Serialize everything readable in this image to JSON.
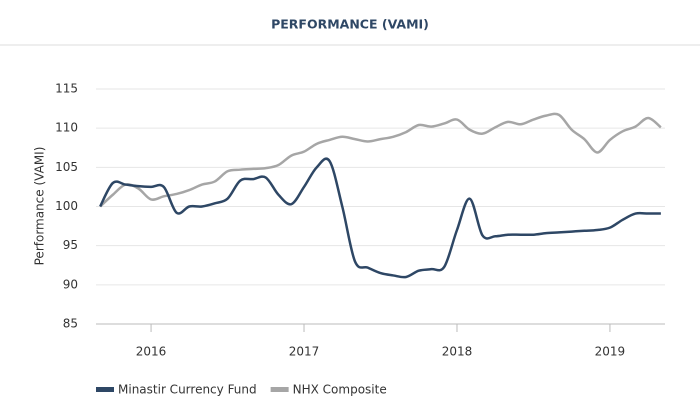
{
  "chart_data": {
    "type": "line",
    "title": "PERFORMANCE (VAMI)",
    "y_label": "Performance (VAMI)",
    "x": [
      2015.667,
      2015.75,
      2015.833,
      2015.917,
      2016.0,
      2016.083,
      2016.167,
      2016.25,
      2016.333,
      2016.417,
      2016.5,
      2016.583,
      2016.667,
      2016.75,
      2016.833,
      2016.917,
      2017.0,
      2017.083,
      2017.167,
      2017.25,
      2017.333,
      2017.417,
      2017.5,
      2017.583,
      2017.667,
      2017.75,
      2017.833,
      2017.917,
      2018.0,
      2018.083,
      2018.167,
      2018.25,
      2018.333,
      2018.417,
      2018.5,
      2018.583,
      2018.667,
      2018.75,
      2018.833,
      2018.917,
      2019.0,
      2019.083,
      2019.167,
      2019.25,
      2019.333
    ],
    "series": [
      {
        "name": "Minastir Currency Fund",
        "color": "#2e4765",
        "values": [
          100,
          103,
          102.8,
          102.6,
          102.5,
          102.5,
          99.2,
          100,
          100,
          100.4,
          101,
          103.3,
          103.5,
          103.7,
          101.5,
          100.3,
          102.5,
          105,
          105.8,
          100,
          93,
          92.2,
          91.5,
          91.2,
          91,
          91.8,
          92,
          92.3,
          97,
          101,
          96.3,
          96.2,
          96.4,
          96.4,
          96.4,
          96.6,
          96.7,
          96.8,
          96.9,
          97,
          97.3,
          98.3,
          99.1,
          99.1,
          99.1
        ]
      },
      {
        "name": "NHX Composite",
        "color": "#a6a6a6",
        "values": [
          100,
          101.5,
          102.8,
          102.3,
          100.9,
          101.3,
          101.6,
          102.1,
          102.8,
          103.2,
          104.5,
          104.7,
          104.8,
          104.9,
          105.3,
          106.5,
          107,
          108,
          108.5,
          108.9,
          108.6,
          108.3,
          108.6,
          108.9,
          109.5,
          110.4,
          110.2,
          110.6,
          111.1,
          109.8,
          109.3,
          110.1,
          110.8,
          110.5,
          111.1,
          111.6,
          111.7,
          109.8,
          108.6,
          106.9,
          108.5,
          109.6,
          110.2,
          111.3,
          110.1
        ]
      }
    ],
    "xlim": [
      2015.64,
      2019.36
    ],
    "xticks": [
      2016,
      2017,
      2018,
      2019
    ],
    "ylim": [
      85,
      115
    ],
    "yticks": [
      85,
      90,
      95,
      100,
      105,
      110,
      115
    ],
    "grid": true,
    "legend": "bottom-left"
  }
}
